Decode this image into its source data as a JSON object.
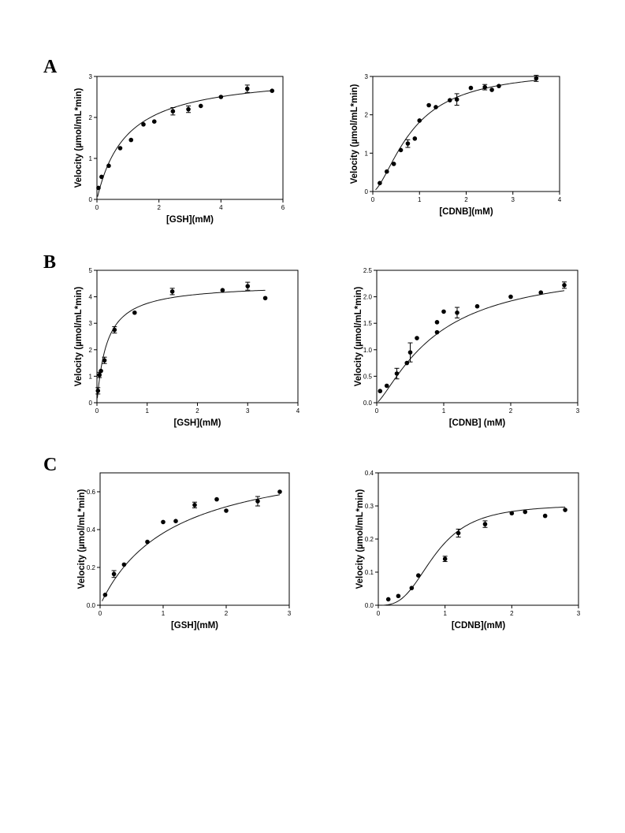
{
  "panels": [
    {
      "letter": "A"
    },
    {
      "letter": "B"
    },
    {
      "letter": "C"
    }
  ],
  "chart_data": [
    {
      "id": "A-gsh",
      "type": "scatter",
      "panel": "A",
      "xlabel": "[GSH](mM)",
      "ylabel": "Velocity (µmol/mL*min)",
      "xlim": [
        0,
        6
      ],
      "ylim": [
        0,
        3
      ],
      "xticks": [
        0,
        2,
        4,
        6
      ],
      "yticks": [
        0,
        1,
        2,
        3
      ],
      "series": [
        {
          "x": [
            0.05,
            0.15,
            0.38,
            0.75,
            1.1,
            1.5,
            1.85,
            2.45,
            2.95,
            3.35,
            4.0,
            4.85,
            5.65
          ],
          "y": [
            0.28,
            0.55,
            0.82,
            1.25,
            1.45,
            1.83,
            1.9,
            2.15,
            2.2,
            2.28,
            2.5,
            2.7,
            2.65
          ],
          "err": [
            0,
            0,
            0,
            0,
            0,
            0,
            0,
            0.09,
            0.08,
            0,
            0,
            0.09,
            0
          ]
        }
      ],
      "fit": {
        "model": "michaelis-menten",
        "vmax": 3.1,
        "km": 0.95
      }
    },
    {
      "id": "A-cdnb",
      "type": "scatter",
      "panel": "A",
      "xlabel": "[CDNB](mM)",
      "ylabel": "Velocity (µmol/mL*min)",
      "xlim": [
        0,
        4
      ],
      "ylim": [
        0,
        3
      ],
      "xticks": [
        0,
        1,
        2,
        3,
        4
      ],
      "yticks": [
        0,
        1,
        2,
        3
      ],
      "series": [
        {
          "x": [
            0.15,
            0.3,
            0.45,
            0.6,
            0.75,
            0.9,
            1.0,
            1.2,
            1.35,
            1.65,
            1.8,
            2.1,
            2.4,
            2.55,
            2.7,
            3.5
          ],
          "y": [
            0.22,
            0.52,
            0.72,
            1.08,
            1.25,
            1.38,
            1.85,
            2.25,
            2.2,
            2.38,
            2.4,
            2.7,
            2.72,
            2.65,
            2.75,
            2.95
          ],
          "err": [
            0,
            0,
            0,
            0,
            0.1,
            0,
            0,
            0,
            0,
            0,
            0.15,
            0,
            0.07,
            0,
            0,
            0.08
          ]
        }
      ],
      "fit": {
        "model": "hill",
        "vmax": 3.2,
        "k": 0.85,
        "n": 1.6
      }
    },
    {
      "id": "B-gsh",
      "type": "scatter",
      "panel": "B",
      "xlabel": "[GSH](mM)",
      "ylabel": "Velocity (µmol/mL*min)",
      "xlim": [
        0,
        4
      ],
      "ylim": [
        0,
        5
      ],
      "xticks": [
        0,
        1,
        2,
        3,
        4
      ],
      "yticks": [
        0,
        1,
        2,
        3,
        4,
        5
      ],
      "series": [
        {
          "x": [
            0.02,
            0.05,
            0.08,
            0.15,
            0.35,
            0.75,
            1.5,
            2.5,
            3.0,
            3.35
          ],
          "y": [
            0.45,
            1.05,
            1.2,
            1.6,
            2.75,
            3.4,
            4.2,
            4.25,
            4.4,
            3.95
          ],
          "err": [
            0.12,
            0.1,
            0,
            0.12,
            0.12,
            0,
            0.12,
            0,
            0.15,
            0
          ]
        }
      ],
      "fit": {
        "model": "michaelis-menten",
        "vmax": 4.5,
        "km": 0.2
      }
    },
    {
      "id": "B-cdnb",
      "type": "scatter",
      "panel": "B",
      "xlabel": "[CDNB] (mM)",
      "ylabel": "Velocity (µmol/mL*min)",
      "xlim": [
        0,
        3
      ],
      "ylim": [
        0,
        2.5
      ],
      "xticks": [
        0,
        1,
        2,
        3
      ],
      "yticks": [
        0.0,
        0.5,
        1.0,
        1.5,
        2.0,
        2.5
      ],
      "series": [
        {
          "x": [
            0.05,
            0.15,
            0.3,
            0.45,
            0.5,
            0.6,
            0.9,
            0.9,
            1.0,
            1.2,
            1.5,
            2.0,
            2.45,
            2.8
          ],
          "y": [
            0.22,
            0.32,
            0.55,
            0.75,
            0.95,
            1.22,
            1.52,
            1.33,
            1.72,
            1.7,
            1.82,
            2.0,
            2.08,
            2.22
          ],
          "err": [
            0,
            0,
            0.1,
            0,
            0.18,
            0,
            0,
            0,
            0,
            0.1,
            0,
            0,
            0,
            0.06
          ]
        }
      ],
      "fit": {
        "model": "hill",
        "vmax": 2.6,
        "k": 0.9,
        "n": 1.3
      }
    },
    {
      "id": "C-gsh",
      "type": "scatter",
      "panel": "C",
      "xlabel": "[GSH](mM)",
      "ylabel": "Velocity (µmol/mL*min)",
      "xlim": [
        0,
        3
      ],
      "ylim": [
        0,
        0.7
      ],
      "xticks": [
        0,
        1,
        2,
        3
      ],
      "yticks": [
        0.0,
        0.2,
        0.4,
        0.6
      ],
      "series": [
        {
          "x": [
            0.08,
            0.22,
            0.38,
            0.75,
            1.0,
            1.2,
            1.5,
            1.85,
            2.0,
            2.5,
            2.85
          ],
          "y": [
            0.055,
            0.165,
            0.215,
            0.335,
            0.44,
            0.445,
            0.53,
            0.56,
            0.5,
            0.55,
            0.6
          ],
          "err": [
            0,
            0.018,
            0,
            0,
            0,
            0,
            0.015,
            0,
            0,
            0.025,
            0
          ]
        }
      ],
      "fit": {
        "model": "michaelis-menten",
        "vmax": 0.82,
        "km": 1.15
      }
    },
    {
      "id": "C-cdnb",
      "type": "scatter",
      "panel": "C",
      "xlabel": "[CDNB](mM)",
      "ylabel": "Velocity (µmol/mL*min)",
      "xlim": [
        0,
        3
      ],
      "ylim": [
        0,
        0.4
      ],
      "xticks": [
        0,
        1,
        2,
        3
      ],
      "yticks": [
        0.0,
        0.1,
        0.2,
        0.3,
        0.4
      ],
      "series": [
        {
          "x": [
            0.15,
            0.3,
            0.5,
            0.6,
            1.0,
            1.2,
            1.6,
            2.0,
            2.2,
            2.5,
            2.8
          ],
          "y": [
            0.018,
            0.028,
            0.052,
            0.09,
            0.14,
            0.218,
            0.245,
            0.278,
            0.282,
            0.27,
            0.288
          ],
          "err": [
            0,
            0,
            0,
            0,
            0.008,
            0.012,
            0.01,
            0,
            0,
            0,
            0
          ]
        }
      ],
      "fit": {
        "model": "hill",
        "vmax": 0.305,
        "k": 0.85,
        "n": 3.0
      }
    }
  ]
}
